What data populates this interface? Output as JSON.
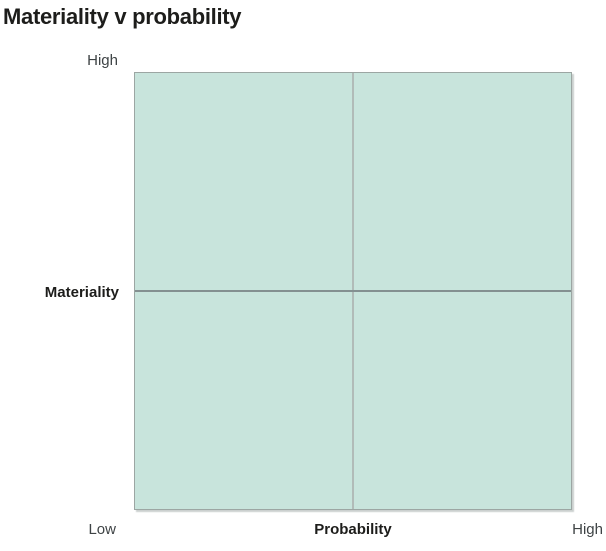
{
  "title": "Materiality v probability",
  "axes": {
    "y_top_tick": "High",
    "y_label": "Materiality",
    "x_left_tick": "Low",
    "x_label": "Probability",
    "x_right_tick": "High"
  },
  "colors": {
    "plot_fill": "#c8e4dc",
    "plot_border": "#9ca6a3",
    "horizontal_divider": "#849091",
    "vertical_divider": "#b1bbb8",
    "title_text": "#1d1d1b",
    "tick_text": "#3e4345",
    "page_bg": "#ffffff"
  },
  "chart_data": {
    "type": "quadrant",
    "title": "Materiality v probability",
    "xlabel": "Probability",
    "ylabel": "Materiality",
    "x_range_labels": [
      "Low",
      "High"
    ],
    "y_range_labels": [
      "Low",
      "High"
    ],
    "rows": 2,
    "cols": 2,
    "series": [],
    "grid": "2x2 matrix divided by one vertical and one horizontal midline; no data points plotted",
    "legend": "none"
  }
}
